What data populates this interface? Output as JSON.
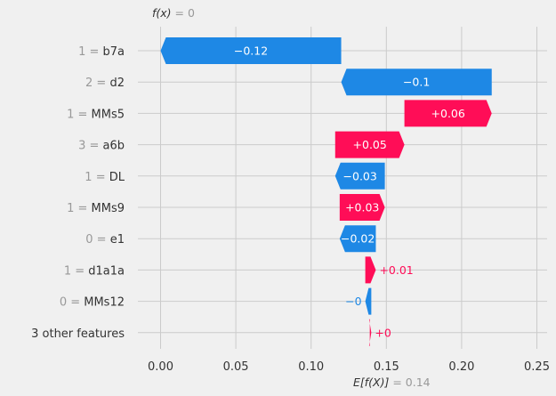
{
  "chart_data": {
    "type": "waterfall",
    "top_label": {
      "name": "f(x)",
      "value": "0"
    },
    "bottom_label": {
      "name": "E[f(X)]",
      "value": "0.14"
    },
    "xlim": [
      -0.035,
      0.255
    ],
    "xticks": [
      "0.00",
      "0.05",
      "0.10",
      "0.15",
      "0.20",
      "0.25"
    ],
    "xtick_values": [
      0.0,
      0.05,
      0.1,
      0.15,
      0.2,
      0.25
    ],
    "grid": true,
    "colors": {
      "positive": "#ff0d57",
      "negative": "#1e88e5"
    },
    "rows": [
      {
        "value_label": "1",
        "feature": "b7a",
        "start": 0.12,
        "end": 0.0,
        "label": "−0.12",
        "label_inside": true
      },
      {
        "value_label": "2",
        "feature": "d2",
        "start": 0.22,
        "end": 0.12,
        "label": "−0.1",
        "label_inside": true
      },
      {
        "value_label": "1",
        "feature": "MMs5",
        "start": 0.162,
        "end": 0.22,
        "label": "+0.06",
        "label_inside": true
      },
      {
        "value_label": "3",
        "feature": "a6b",
        "start": 0.116,
        "end": 0.162,
        "label": "+0.05",
        "label_inside": true
      },
      {
        "value_label": "1",
        "feature": "DL",
        "start": 0.149,
        "end": 0.116,
        "label": "−0.03",
        "label_inside": true
      },
      {
        "value_label": "1",
        "feature": "MMs9",
        "start": 0.119,
        "end": 0.149,
        "label": "+0.03",
        "label_inside": true
      },
      {
        "value_label": "0",
        "feature": "e1",
        "start": 0.143,
        "end": 0.119,
        "label": "−0.02",
        "label_inside": true
      },
      {
        "value_label": "1",
        "feature": "d1a1a",
        "start": 0.136,
        "end": 0.143,
        "label": "+0.01",
        "label_inside": false
      },
      {
        "value_label": "0",
        "feature": "MMs12",
        "start": 0.14,
        "end": 0.136,
        "label": "−0",
        "label_inside": false
      },
      {
        "value_label": "",
        "feature": "3 other features",
        "start": 0.139,
        "end": 0.14,
        "label": "+0",
        "label_inside": false
      }
    ]
  }
}
